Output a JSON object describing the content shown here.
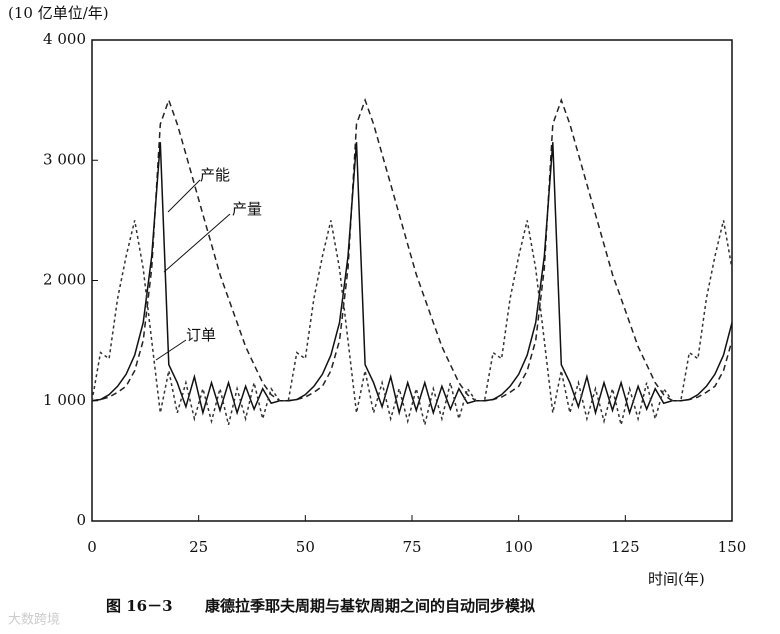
{
  "chart_data": {
    "type": "line",
    "y_label": "(10 亿单位/年)",
    "x_label": "时间(年)",
    "caption_number": "图 16－3",
    "caption": "康德拉季耶夫周期与基钦周期之间的自动同步模拟",
    "watermark": "大数跨境",
    "xlim": [
      0,
      150
    ],
    "xticks": [
      0,
      25,
      50,
      75,
      100,
      125,
      150
    ],
    "ylim": [
      0,
      4000
    ],
    "yticks": [
      0,
      {
        "value": 1000,
        "label": "1 000"
      },
      {
        "value": 2000,
        "label": "2 000"
      },
      {
        "value": 3000,
        "label": "3 000"
      },
      {
        "value": 4000,
        "label": "4 000"
      }
    ],
    "grid": false,
    "x": [
      0,
      2,
      4,
      6,
      8,
      10,
      12,
      14,
      16,
      18,
      20,
      22,
      24,
      26,
      28,
      30,
      32,
      34,
      36,
      38,
      40,
      42,
      44,
      46,
      48,
      50,
      52,
      54,
      56,
      58,
      60,
      62,
      64,
      66,
      68,
      70,
      72,
      74,
      76,
      78,
      80,
      82,
      84,
      86,
      88,
      90,
      92,
      94,
      96,
      98,
      100,
      102,
      104,
      106,
      108,
      110,
      112,
      114,
      116,
      118,
      120,
      122,
      124,
      126,
      128,
      130,
      132,
      134,
      136,
      138,
      140,
      142,
      144,
      146,
      148,
      150
    ],
    "series": [
      {
        "name": "产能",
        "color": "#222",
        "dash": "6,4",
        "values": [
          1000,
          1010,
          1030,
          1070,
          1120,
          1250,
          1500,
          2100,
          3300,
          3500,
          3300,
          3050,
          2800,
          2550,
          2300,
          2050,
          1850,
          1650,
          1450,
          1300,
          1150,
          1050,
          1000,
          1000,
          1010,
          1030,
          1070,
          1120,
          1250,
          1500,
          2100,
          3300,
          3500,
          3300,
          3050,
          2800,
          2550,
          2300,
          2050,
          1850,
          1650,
          1450,
          1300,
          1150,
          1050,
          1000,
          1000,
          1010,
          1030,
          1070,
          1120,
          1250,
          1500,
          2100,
          3300,
          3500,
          3300,
          3050,
          2800,
          2550,
          2300,
          2050,
          1850,
          1650,
          1450,
          1300,
          1150,
          1050,
          1000,
          1000,
          1010,
          1030,
          1070,
          1120,
          1250,
          1500
        ]
      },
      {
        "name": "产量",
        "color": "#111",
        "dash": "",
        "values": [
          1000,
          1010,
          1050,
          1120,
          1220,
          1380,
          1650,
          2200,
          3150,
          1300,
          1150,
          950,
          1200,
          900,
          1150,
          920,
          1150,
          900,
          1120,
          930,
          1100,
          980,
          1000,
          1000,
          1010,
          1050,
          1120,
          1220,
          1380,
          1650,
          2200,
          3150,
          1300,
          1150,
          950,
          1200,
          900,
          1150,
          920,
          1150,
          900,
          1120,
          930,
          1100,
          980,
          1000,
          1000,
          1010,
          1050,
          1120,
          1220,
          1380,
          1650,
          2200,
          3150,
          1300,
          1150,
          950,
          1200,
          900,
          1150,
          920,
          1150,
          900,
          1120,
          930,
          1100,
          980,
          1000,
          1000,
          1010,
          1050,
          1120,
          1220,
          1380,
          1650
        ]
      },
      {
        "name": "订单",
        "color": "#333",
        "dash": "3,3",
        "values": [
          1000,
          1400,
          1350,
          1850,
          2200,
          2500,
          2100,
          1500,
          900,
          1250,
          900,
          1150,
          850,
          1100,
          830,
          1100,
          800,
          1100,
          850,
          1150,
          850,
          1100,
          1000,
          1000,
          1400,
          1350,
          1850,
          2200,
          2500,
          2100,
          1500,
          900,
          1250,
          900,
          1150,
          850,
          1100,
          830,
          1100,
          800,
          1100,
          850,
          1150,
          850,
          1100,
          1000,
          1000,
          1400,
          1350,
          1850,
          2200,
          2500,
          2100,
          1500,
          900,
          1250,
          900,
          1150,
          850,
          1100,
          830,
          1100,
          800,
          1100,
          850,
          1150,
          850,
          1100,
          1000,
          1000,
          1400,
          1350,
          1850,
          2200,
          2500,
          2100
        ]
      }
    ]
  }
}
